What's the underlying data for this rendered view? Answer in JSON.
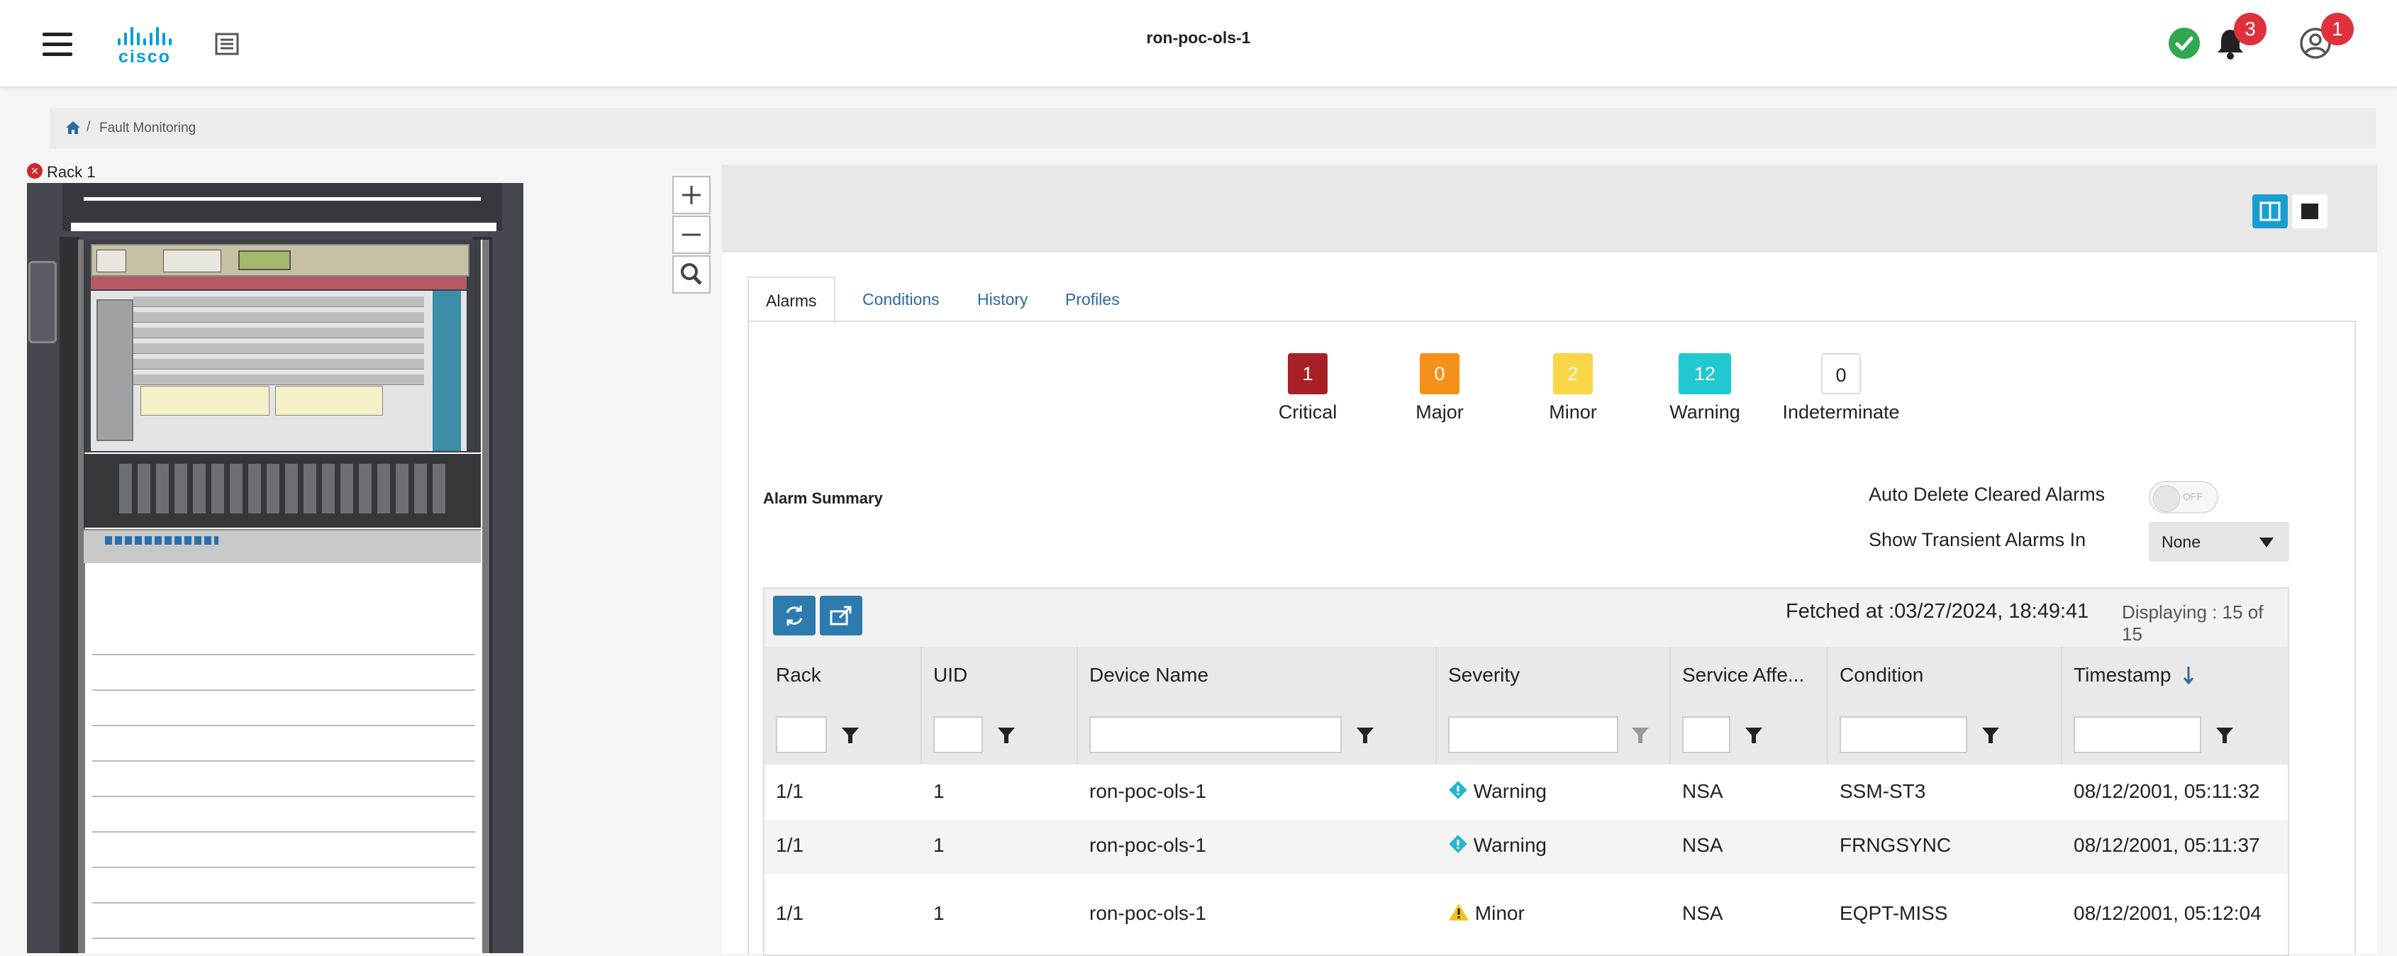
{
  "header": {
    "app_title": "ron-poc-ols-1",
    "logo_text": "cisco",
    "notifications_count": "3",
    "user_badge_count": "1",
    "brand_color": "#049fd9",
    "status_color": "#2fa84f"
  },
  "breadcrumb": {
    "current": "Fault Monitoring"
  },
  "rack": {
    "label": "Rack 1",
    "status_icon": "error-icon"
  },
  "tabs": [
    {
      "label": "Alarms",
      "active": true
    },
    {
      "label": "Conditions"
    },
    {
      "label": "History"
    },
    {
      "label": "Profiles"
    }
  ],
  "severity_counts": [
    {
      "label": "Critical",
      "count": "1",
      "color": "#a82127"
    },
    {
      "label": "Major",
      "count": "0",
      "color": "#f5901a"
    },
    {
      "label": "Minor",
      "count": "2",
      "color": "#f9d648"
    },
    {
      "label": "Warning",
      "count": "12",
      "color": "#22c8cf"
    },
    {
      "label": "Indeterminate",
      "count": "0",
      "color": "#ffffff"
    }
  ],
  "summary": {
    "title": "Alarm Summary",
    "auto_delete_label": "Auto Delete Cleared Alarms",
    "toggle_state": "OFF",
    "transient_label": "Show Transient Alarms In",
    "transient_value": "None"
  },
  "grid": {
    "fetched_at": "Fetched at :03/27/2024, 18:49:41",
    "displaying": "Displaying : 15 of 15",
    "columns": [
      "Rack",
      "UID",
      "Device Name",
      "Severity",
      "Service Affe...",
      "Condition",
      "Timestamp"
    ],
    "rows": [
      {
        "rack": "1/1",
        "uid": "1",
        "device": "ron-poc-ols-1",
        "severity": "Warning",
        "severity_icon": "warning-diamond-icon",
        "service": "NSA",
        "condition": "SSM-ST3",
        "timestamp": "08/12/2001, 05:11:32"
      },
      {
        "rack": "1/1",
        "uid": "1",
        "device": "ron-poc-ols-1",
        "severity": "Warning",
        "severity_icon": "warning-diamond-icon",
        "service": "NSA",
        "condition": "FRNGSYNC",
        "timestamp": "08/12/2001, 05:11:37"
      },
      {
        "rack": "1/1",
        "uid": "1",
        "device": "ron-poc-ols-1",
        "severity": "Minor",
        "severity_icon": "minor-triangle-icon",
        "service": "NSA",
        "condition": "EQPT-MISS",
        "timestamp": "08/12/2001, 05:12:04"
      }
    ]
  }
}
